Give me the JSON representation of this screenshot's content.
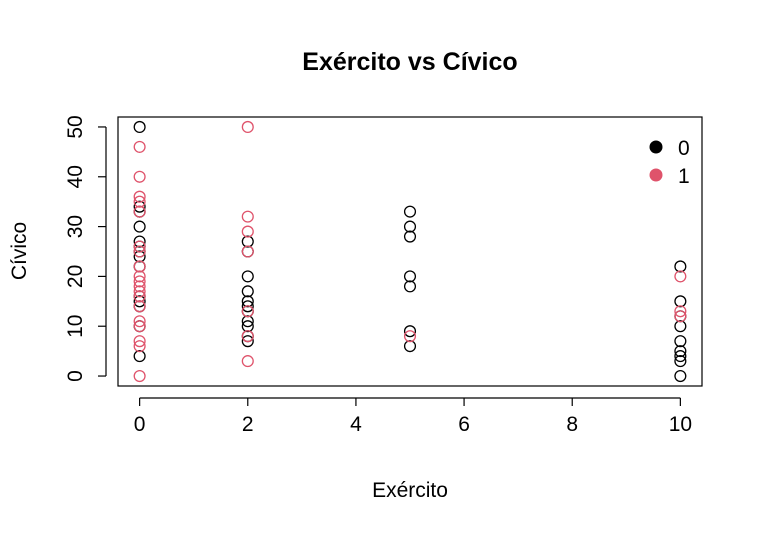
{
  "chart_data": {
    "type": "scatter",
    "title": "Exército vs Cívico",
    "xlabel": "Exército",
    "ylabel": "Cívico",
    "xlim": [
      -0.4,
      10.4
    ],
    "ylim": [
      -2,
      52
    ],
    "xticks": [
      0,
      2,
      4,
      6,
      8,
      10
    ],
    "yticks": [
      0,
      10,
      20,
      30,
      40,
      50
    ],
    "grid": false,
    "legend_position": "top-right",
    "series": [
      {
        "name": "0",
        "color": "#000000",
        "points": [
          [
            0,
            50
          ],
          [
            0,
            34
          ],
          [
            0,
            33
          ],
          [
            0,
            30
          ],
          [
            0,
            27
          ],
          [
            0,
            26
          ],
          [
            0,
            25
          ],
          [
            0,
            24
          ],
          [
            0,
            22
          ],
          [
            0,
            16
          ],
          [
            0,
            15
          ],
          [
            0,
            14
          ],
          [
            0,
            10
          ],
          [
            0,
            4
          ],
          [
            2,
            27
          ],
          [
            2,
            25
          ],
          [
            2,
            20
          ],
          [
            2,
            17
          ],
          [
            2,
            15
          ],
          [
            2,
            14
          ],
          [
            2,
            13
          ],
          [
            2,
            11
          ],
          [
            2,
            10
          ],
          [
            2,
            8
          ],
          [
            2,
            7
          ],
          [
            5,
            33
          ],
          [
            5,
            30
          ],
          [
            5,
            28
          ],
          [
            5,
            20
          ],
          [
            5,
            18
          ],
          [
            5,
            9
          ],
          [
            5,
            6
          ],
          [
            10,
            22
          ],
          [
            10,
            15
          ],
          [
            10,
            12
          ],
          [
            10,
            10
          ],
          [
            10,
            7
          ],
          [
            10,
            5
          ],
          [
            10,
            4
          ],
          [
            10,
            3
          ],
          [
            10,
            0
          ]
        ]
      },
      {
        "name": "1",
        "color": "#DF536B",
        "points": [
          [
            0,
            46
          ],
          [
            0,
            40
          ],
          [
            0,
            36
          ],
          [
            0,
            35
          ],
          [
            0,
            33
          ],
          [
            0,
            26
          ],
          [
            0,
            25
          ],
          [
            0,
            22
          ],
          [
            0,
            20
          ],
          [
            0,
            19
          ],
          [
            0,
            18
          ],
          [
            0,
            17
          ],
          [
            0,
            16
          ],
          [
            0,
            14
          ],
          [
            0,
            11
          ],
          [
            0,
            10
          ],
          [
            0,
            7
          ],
          [
            0,
            6
          ],
          [
            0,
            0
          ],
          [
            2,
            50
          ],
          [
            2,
            32
          ],
          [
            2,
            29
          ],
          [
            2,
            25
          ],
          [
            2,
            13
          ],
          [
            2,
            8
          ],
          [
            2,
            3
          ],
          [
            5,
            8
          ],
          [
            10,
            20
          ],
          [
            10,
            13
          ],
          [
            10,
            12
          ]
        ]
      }
    ]
  }
}
